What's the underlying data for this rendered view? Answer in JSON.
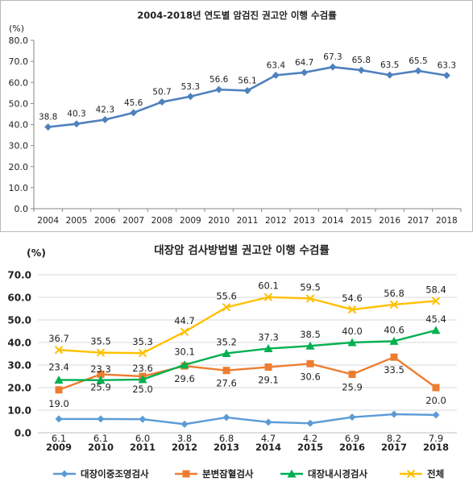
{
  "chart_data": [
    {
      "type": "line",
      "title": "2004-2018년 연도별 암검진 권고안 이행 수검률",
      "unit_label": "(%)",
      "x": [
        "2004",
        "2005",
        "2006",
        "2007",
        "2008",
        "2009",
        "2010",
        "2011",
        "2012",
        "2013",
        "2014",
        "2015",
        "2016",
        "2017",
        "2018"
      ],
      "series": [
        {
          "values": [
            38.8,
            40.3,
            42.3,
            45.6,
            50.7,
            53.3,
            56.6,
            56.1,
            63.4,
            64.7,
            67.3,
            65.8,
            63.5,
            65.5,
            63.3
          ],
          "color": "#4f81bd",
          "marker": "diamond"
        }
      ],
      "ylim": [
        0,
        80
      ],
      "yticks": [
        0,
        10,
        20,
        30,
        40,
        50,
        60,
        70,
        80
      ],
      "grid": false
    },
    {
      "type": "line",
      "title": "대장암 검사방법별 권고안 이행 수검률",
      "unit_label": "(%)",
      "x": [
        "2009",
        "2010",
        "2011",
        "2012",
        "2013",
        "2014",
        "2015",
        "2016",
        "2017",
        "2018"
      ],
      "series": [
        {
          "name": "대장이중조영검사",
          "values": [
            6.1,
            6.1,
            6.0,
            3.8,
            6.8,
            4.7,
            4.2,
            6.9,
            8.2,
            7.9
          ],
          "color": "#5b9bd5",
          "marker": "diamond"
        },
        {
          "name": "분변잠혈검사",
          "values": [
            19.0,
            25.9,
            25.0,
            29.6,
            27.6,
            29.1,
            30.6,
            25.9,
            33.5,
            20.0
          ],
          "color": "#ed7d31",
          "marker": "square"
        },
        {
          "name": "대장내시경검사",
          "values": [
            23.4,
            23.3,
            23.6,
            30.1,
            35.2,
            37.3,
            38.5,
            40.0,
            40.6,
            45.4
          ],
          "color": "#00b050",
          "marker": "triangle"
        },
        {
          "name": "전체",
          "values": [
            36.7,
            35.5,
            35.3,
            44.7,
            55.6,
            60.1,
            59.5,
            54.6,
            56.8,
            58.4
          ],
          "color": "#ffc000",
          "marker": "x"
        }
      ],
      "ylim": [
        0,
        70
      ],
      "yticks": [
        "0.0",
        "10.0",
        "20.0",
        "30.0",
        "40.0",
        "50.0",
        "60.0",
        "70.0"
      ],
      "grid": true,
      "legend": "bottom"
    }
  ]
}
